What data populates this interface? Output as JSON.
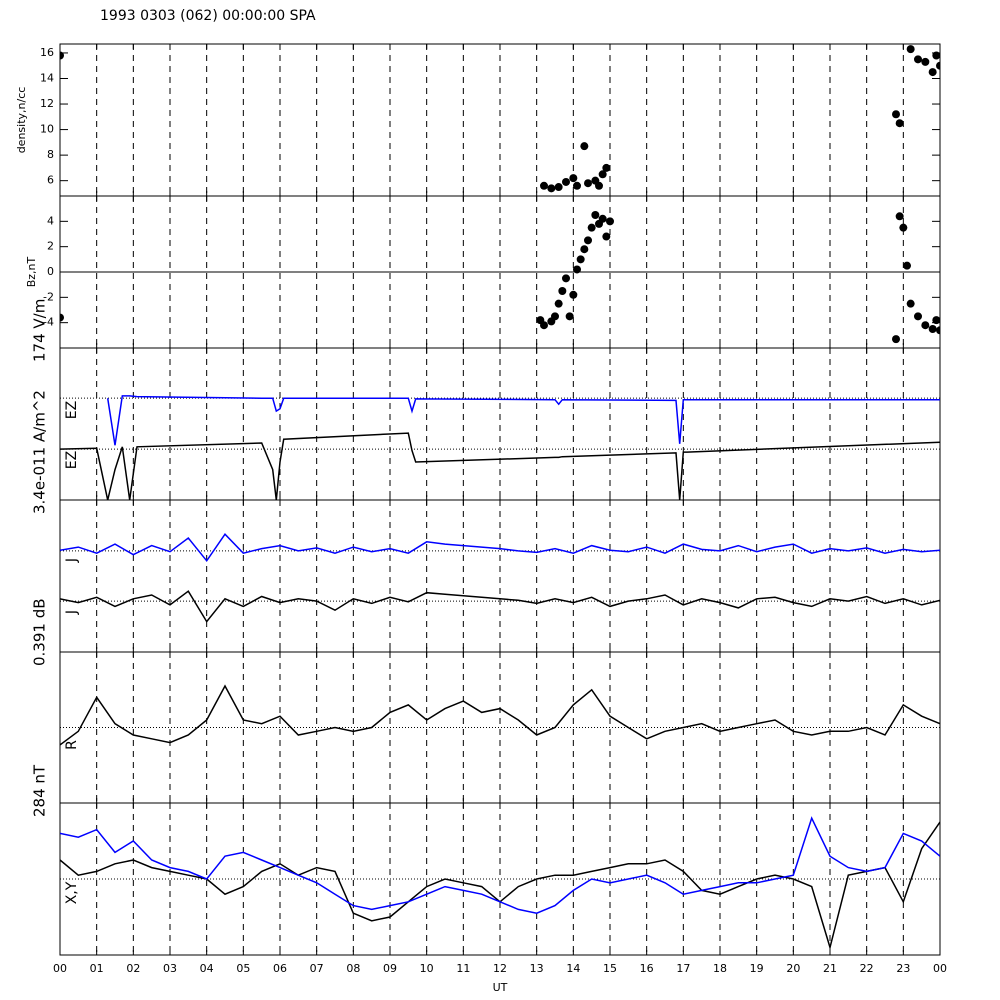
{
  "chart_data": [
    {
      "type": "scatter",
      "title": "1993 0303 (062) 00:00:00 SPA",
      "ylabel": "density,n/cc",
      "color": "#000000",
      "xlim": [
        0,
        24
      ],
      "ylim": [
        4.8,
        16.7
      ],
      "yticks": [
        6,
        8,
        10,
        12,
        14,
        16
      ],
      "x": [
        0,
        13.2,
        13.4,
        13.6,
        13.8,
        14.0,
        14.1,
        14.3,
        14.4,
        14.6,
        14.7,
        14.8,
        14.9,
        22.8,
        22.9,
        23.2,
        23.4,
        23.6,
        23.8,
        23.9,
        24
      ],
      "values": [
        15.8,
        5.6,
        5.4,
        5.5,
        5.9,
        6.2,
        5.6,
        8.7,
        5.8,
        6.0,
        5.6,
        6.5,
        7.0,
        11.2,
        10.5,
        16.3,
        15.5,
        15.3,
        14.5,
        15.8,
        15.0
      ]
    },
    {
      "type": "scatter",
      "ylabel": "Bz,nT",
      "color": "#000000",
      "reflines": [
        0
      ],
      "refline_style": "solid",
      "xlim": [
        0,
        24
      ],
      "ylim": [
        -6,
        6
      ],
      "yticks": [
        -4,
        -2,
        0,
        2,
        4
      ],
      "x": [
        0,
        13.1,
        13.2,
        13.4,
        13.5,
        13.6,
        13.7,
        13.8,
        13.9,
        14.0,
        14.1,
        14.2,
        14.3,
        14.4,
        14.5,
        14.6,
        14.7,
        14.8,
        14.9,
        15.0,
        22.8,
        22.9,
        23.0,
        23.1,
        23.2,
        23.4,
        23.6,
        23.8,
        23.9,
        24
      ],
      "values": [
        -3.6,
        -3.8,
        -4.2,
        -3.9,
        -3.5,
        -2.5,
        -1.5,
        -0.5,
        -3.5,
        -1.8,
        0.2,
        1.0,
        1.8,
        2.5,
        3.5,
        4.5,
        3.8,
        4.2,
        2.8,
        4.0,
        -5.3,
        4.4,
        3.5,
        0.5,
        -2.5,
        -3.5,
        -4.2,
        -4.5,
        -3.8,
        -4.6
      ]
    },
    {
      "type": "line",
      "scale_label": "174 V/m",
      "reflines": [
        0.34,
        -0.33
      ],
      "refline_style": "dotted",
      "xlim": [
        0,
        24
      ],
      "ylim": [
        -1,
        1
      ],
      "x": [
        0,
        1,
        1.3,
        1.5,
        1.7,
        1.9,
        2.1,
        5.5,
        5.8,
        5.9,
        6.0,
        6.1,
        9.5,
        9.6,
        9.7,
        13.5,
        13.6,
        13.7,
        16.8,
        16.9,
        17.0,
        17.1,
        24
      ],
      "series": [
        {
          "name": "EZ",
          "color": "#0000ff",
          "values": [
            null,
            null,
            0.34,
            -0.28,
            0.37,
            0.37,
            0.36,
            0.34,
            0.34,
            0.17,
            0.2,
            0.34,
            0.34,
            0.17,
            0.33,
            0.32,
            0.26,
            0.32,
            0.31,
            -0.26,
            0.32,
            0.32,
            0.32
          ]
        },
        {
          "name": "EZ",
          "color": "#000000",
          "values": [
            -0.33,
            -0.32,
            -1,
            -0.6,
            -0.3,
            -1,
            -0.3,
            -0.25,
            -0.6,
            -1,
            -0.5,
            -0.2,
            -0.12,
            -0.35,
            -0.5,
            -0.44,
            -0.44,
            -0.43,
            -0.38,
            -1,
            -0.37,
            -0.37,
            -0.24
          ]
        }
      ]
    },
    {
      "type": "line",
      "scale_label": "3.4e-011 A/m^2",
      "reflines": [
        0.33,
        -0.33
      ],
      "refline_style": "dotted",
      "xlim": [
        0,
        24
      ],
      "ylim": [
        -1,
        1
      ],
      "x": [
        0,
        0.5,
        1,
        1.5,
        2,
        2.5,
        3,
        3.5,
        4,
        4.5,
        5,
        5.5,
        6,
        6.5,
        7,
        7.5,
        8,
        8.5,
        9,
        9.5,
        10,
        10.5,
        11,
        11.5,
        12,
        12.5,
        13,
        13.5,
        14,
        14.5,
        15,
        15.5,
        16,
        16.5,
        17,
        17.5,
        18,
        18.5,
        19,
        19.5,
        20,
        20.5,
        21,
        21.5,
        22,
        22.5,
        23,
        23.5,
        24
      ],
      "series": [
        {
          "name": "J",
          "color": "#0000ff",
          "values": [
            0.34,
            0.38,
            0.3,
            0.42,
            0.28,
            0.4,
            0.32,
            0.5,
            0.2,
            0.55,
            0.3,
            0.36,
            0.4,
            0.33,
            0.37,
            0.3,
            0.38,
            0.32,
            0.36,
            0.3,
            0.45,
            0.42,
            0.4,
            0.38,
            0.36,
            0.33,
            0.31,
            0.36,
            0.3,
            0.4,
            0.34,
            0.32,
            0.38,
            0.3,
            0.42,
            0.35,
            0.33,
            0.4,
            0.32,
            0.38,
            0.42,
            0.3,
            0.36,
            0.33,
            0.37,
            0.3,
            0.35,
            0.32,
            0.34
          ]
        },
        {
          "name": "J",
          "color": "#000000",
          "values": [
            -0.3,
            -0.35,
            -0.28,
            -0.4,
            -0.3,
            -0.25,
            -0.38,
            -0.2,
            -0.6,
            -0.3,
            -0.4,
            -0.27,
            -0.35,
            -0.3,
            -0.33,
            -0.45,
            -0.3,
            -0.36,
            -0.28,
            -0.34,
            -0.22,
            -0.24,
            -0.26,
            -0.28,
            -0.3,
            -0.32,
            -0.36,
            -0.3,
            -0.35,
            -0.28,
            -0.4,
            -0.33,
            -0.3,
            -0.25,
            -0.38,
            -0.3,
            -0.35,
            -0.42,
            -0.3,
            -0.28,
            -0.35,
            -0.4,
            -0.3,
            -0.33,
            -0.27,
            -0.36,
            -0.3,
            -0.38,
            -0.32
          ]
        }
      ]
    },
    {
      "type": "line",
      "scale_label": "0.391 dB",
      "label": "R",
      "reflines": [
        0
      ],
      "refline_style": "dotted",
      "xlim": [
        0,
        24
      ],
      "ylim": [
        -1,
        1
      ],
      "x": [
        0,
        0.5,
        1,
        1.5,
        2,
        2.5,
        3,
        3.5,
        4,
        4.5,
        5,
        5.5,
        6,
        6.5,
        7,
        7.5,
        8,
        8.5,
        9,
        9.5,
        10,
        10.5,
        11,
        11.5,
        12,
        12.5,
        13,
        13.5,
        14,
        14.5,
        15,
        15.5,
        16,
        16.5,
        17,
        17.5,
        18,
        18.5,
        19,
        19.5,
        20,
        20.5,
        21,
        21.5,
        22,
        22.5,
        23,
        23.5,
        24
      ],
      "series": [
        {
          "color": "#000000",
          "values": [
            -0.23,
            -0.05,
            0.4,
            0.05,
            -0.1,
            -0.15,
            -0.2,
            -0.1,
            0.1,
            0.55,
            0.1,
            0.05,
            0.15,
            -0.1,
            -0.05,
            0.0,
            -0.05,
            0.0,
            0.2,
            0.3,
            0.1,
            0.25,
            0.35,
            0.2,
            0.25,
            0.1,
            -0.1,
            0.0,
            0.3,
            0.5,
            0.15,
            0.0,
            -0.15,
            -0.05,
            0.0,
            0.05,
            -0.05,
            0.0,
            0.05,
            0.1,
            -0.05,
            -0.1,
            -0.05,
            -0.05,
            0.0,
            -0.1,
            0.3,
            0.15,
            0.05
          ]
        }
      ]
    },
    {
      "type": "line",
      "scale_label": "284 nT",
      "label": "X,Y",
      "xlabel": "UT",
      "reflines": [
        0
      ],
      "refline_style": "dotted",
      "xlim": [
        0,
        24
      ],
      "ylim": [
        -1,
        1
      ],
      "xticks": [
        {
          "value": 0,
          "label": "00"
        },
        {
          "value": 1,
          "label": "01"
        },
        {
          "value": 2,
          "label": "02"
        },
        {
          "value": 3,
          "label": "03"
        },
        {
          "value": 4,
          "label": "04"
        },
        {
          "value": 5,
          "label": "05"
        },
        {
          "value": 6,
          "label": "06"
        },
        {
          "value": 7,
          "label": "07"
        },
        {
          "value": 8,
          "label": "08"
        },
        {
          "value": 9,
          "label": "09"
        },
        10,
        11,
        12,
        13,
        14,
        15,
        16,
        17,
        18,
        19,
        20,
        21,
        22,
        23,
        {
          "value": 24,
          "label": "00"
        }
      ],
      "x": [
        0,
        0.5,
        1,
        1.5,
        2,
        2.5,
        3,
        3.5,
        4,
        4.5,
        5,
        5.5,
        6,
        6.5,
        7,
        7.5,
        8,
        8.5,
        9,
        9.5,
        10,
        10.5,
        11,
        11.5,
        12,
        12.5,
        13,
        13.5,
        14,
        14.5,
        15,
        15.5,
        16,
        16.5,
        17,
        17.5,
        18,
        18.5,
        19,
        19.5,
        20,
        20.5,
        21,
        21.5,
        22,
        22.5,
        23,
        23.5,
        24
      ],
      "series": [
        {
          "color": "#000000",
          "values": [
            0.25,
            0.05,
            0.1,
            0.2,
            0.25,
            0.15,
            0.1,
            0.05,
            0.0,
            -0.2,
            -0.1,
            0.1,
            0.2,
            0.05,
            0.15,
            0.1,
            -0.45,
            -0.55,
            -0.5,
            -0.3,
            -0.1,
            0.0,
            -0.05,
            -0.1,
            -0.3,
            -0.1,
            0.0,
            0.05,
            0.05,
            0.1,
            0.15,
            0.2,
            0.2,
            0.25,
            0.1,
            -0.15,
            -0.2,
            -0.1,
            0.0,
            0.05,
            0.0,
            -0.1,
            -0.9,
            0.05,
            0.1,
            0.15,
            -0.3,
            0.4,
            0.75
          ]
        },
        {
          "color": "#0000ff",
          "values": [
            0.6,
            0.55,
            0.65,
            0.35,
            0.5,
            0.25,
            0.15,
            0.1,
            0.0,
            0.3,
            0.35,
            0.25,
            0.15,
            0.05,
            -0.05,
            -0.2,
            -0.35,
            -0.4,
            -0.35,
            -0.3,
            -0.2,
            -0.1,
            -0.15,
            -0.2,
            -0.3,
            -0.4,
            -0.45,
            -0.35,
            -0.15,
            0.0,
            -0.05,
            0.0,
            0.05,
            -0.05,
            -0.2,
            -0.15,
            -0.1,
            -0.05,
            -0.05,
            0.0,
            0.05,
            0.8,
            0.3,
            0.15,
            0.1,
            0.15,
            0.6,
            0.5,
            0.3
          ]
        }
      ]
    }
  ]
}
